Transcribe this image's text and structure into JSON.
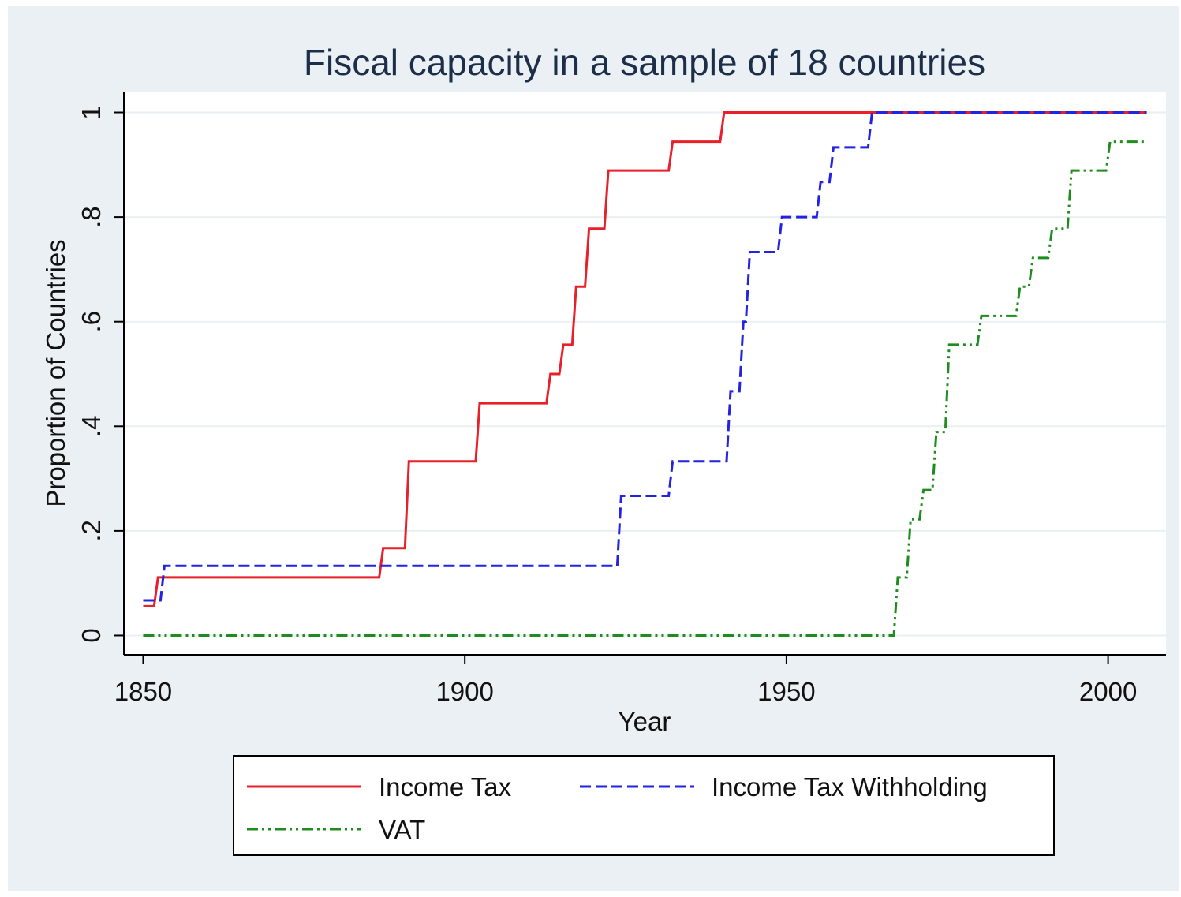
{
  "chart_data": {
    "type": "line",
    "title": "Fiscal capacity in a sample of 18 countries",
    "xlabel": "Year",
    "ylabel": "Proportion of Countries",
    "xlim": [
      1847,
      2009
    ],
    "ylim": [
      -0.037,
      1.04
    ],
    "x_ticks": [
      1850,
      1900,
      1950,
      2000
    ],
    "x_tick_labels": [
      "1850",
      "1900",
      "1950",
      "2000"
    ],
    "y_ticks": [
      0,
      0.2,
      0.4,
      0.6,
      0.8,
      1
    ],
    "y_tick_labels": [
      "0",
      ".2",
      ".4",
      ".6",
      ".8",
      "1"
    ],
    "grid": true,
    "legend_position": "bottom",
    "colors": {
      "outer_background": "#eaf0f3",
      "plot_background": "#ffffff",
      "gridline": "#e9eff2",
      "axis": "#000000",
      "title": "#1c2e4a",
      "text": "#111111"
    },
    "series": [
      {
        "name": "Income Tax",
        "color": "#e8202a",
        "dash": "solid",
        "step": true,
        "points": [
          [
            1850,
            0.056
          ],
          [
            1852,
            0.111
          ],
          [
            1887,
            0.167
          ],
          [
            1891,
            0.333
          ],
          [
            1902,
            0.444
          ],
          [
            1913,
            0.5
          ],
          [
            1915,
            0.556
          ],
          [
            1917,
            0.667
          ],
          [
            1919,
            0.778
          ],
          [
            1922,
            0.889
          ],
          [
            1932,
            0.944
          ],
          [
            1940,
            1.0
          ],
          [
            2006,
            1.0
          ]
        ]
      },
      {
        "name": "Income Tax Withholding",
        "color": "#2323e0",
        "dash": "dashed",
        "step": true,
        "points": [
          [
            1850,
            0.067
          ],
          [
            1853,
            0.133
          ],
          [
            1924,
            0.267
          ],
          [
            1932,
            0.333
          ],
          [
            1941,
            0.467
          ],
          [
            1943,
            0.6
          ],
          [
            1944,
            0.733
          ],
          [
            1949,
            0.8
          ],
          [
            1955,
            0.867
          ],
          [
            1957,
            0.933
          ],
          [
            1963,
            1.0
          ],
          [
            2006,
            1.0
          ]
        ]
      },
      {
        "name": "VAT",
        "color": "#1e8c1e",
        "dash": "dashdot",
        "step": true,
        "points": [
          [
            1850,
            0.0
          ],
          [
            1967,
            0.111
          ],
          [
            1969,
            0.222
          ],
          [
            1971,
            0.278
          ],
          [
            1973,
            0.389
          ],
          [
            1975,
            0.556
          ],
          [
            1980,
            0.611
          ],
          [
            1986,
            0.667
          ],
          [
            1988,
            0.722
          ],
          [
            1991,
            0.778
          ],
          [
            1994,
            0.889
          ],
          [
            2000,
            0.944
          ],
          [
            2006,
            0.944
          ]
        ]
      }
    ]
  }
}
